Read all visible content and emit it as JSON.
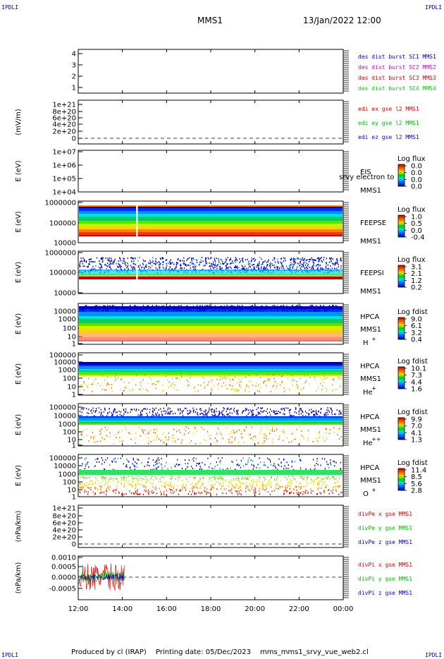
{
  "header": {
    "corner_label": "IPDLI",
    "spacecraft": "MMS1",
    "date_time": "13/Jan/2022 12:00"
  },
  "footer": {
    "producer": "Produced by cl (IRAP)",
    "printing_date": "Printing date: 05/Dec/2023",
    "script": "mms_mms1_srvy_vue_web2.cl"
  },
  "colors": {
    "mms1": "#0000cc",
    "mms2": "#cc00cc",
    "mms3": "#cc0000",
    "mms4": "#00cc00",
    "x_comp": "#dd0000",
    "y_comp": "#00bb00",
    "z_comp": "#0000cc"
  },
  "chart_data": [
    {
      "type": "line",
      "id": "p1",
      "ylabel": "",
      "yticks": [
        "4",
        "3",
        "2",
        "1"
      ],
      "ylim": [
        0.5,
        4.5
      ],
      "legend": [
        {
          "text": "des dist burst SC1 MMS1",
          "color": "#0000cc"
        },
        {
          "text": "des dist burst SC2 MMS2",
          "color": "#cc00cc"
        },
        {
          "text": "des dist burst SC3 MMS3",
          "color": "#cc0000"
        },
        {
          "text": "des dist burst SC4 MMS4",
          "color": "#00cc00"
        }
      ]
    },
    {
      "type": "line",
      "id": "p2",
      "ylabel": "(mV/m)",
      "yticks": [
        "1e+21",
        "8e+20",
        "6e+20",
        "4e+20",
        "2e+20",
        "0"
      ],
      "ylim": [
        -2e+19,
        1.06e+21
      ],
      "zero_line": true,
      "legend": [
        {
          "text": "edi ex gse l2 MMS1",
          "color": "#dd0000"
        },
        {
          "text": "edi ey gse l2 MMS1",
          "color": "#00bb00"
        },
        {
          "text": "edi ez gse l2 MMS1",
          "color": "#0000cc"
        }
      ]
    },
    {
      "type": "heatmap",
      "id": "p3",
      "ylabel": "E (eV)",
      "scale": "log",
      "yticks": [
        "1e+07",
        "1e+06",
        "1e+05",
        "1e+04"
      ],
      "instrument": [
        "EIS",
        "MMS1"
      ],
      "overlay": "srvy electron to",
      "colorbar": {
        "title": "Log flux",
        "ticks": [
          "0.0",
          "0.0",
          "0.0",
          "0.0"
        ]
      }
    },
    {
      "type": "heatmap",
      "id": "p4",
      "ylabel": "E (eV)",
      "scale": "log",
      "yticks": [
        "1000000",
        "100000",
        "10000"
      ],
      "y_range": [
        10000,
        1000000
      ],
      "instrument": [
        "FEEPSE",
        "MMS1"
      ],
      "data_gap_hour": 14.65,
      "colorbar": {
        "title": "Log flux",
        "ticks": [
          "1.0",
          "0.5",
          "0.0",
          "-0.4"
        ]
      }
    },
    {
      "type": "heatmap",
      "id": "p5",
      "ylabel": "E (eV)",
      "scale": "log",
      "yticks": [
        "1000000",
        "100000",
        "10000"
      ],
      "y_range": [
        10000,
        1000000
      ],
      "instrument": [
        "FEEPSI",
        "MMS1"
      ],
      "data_gap_hour": 14.65,
      "colorbar": {
        "title": "Log flux",
        "ticks": [
          "3.1",
          "2.1",
          "1.2",
          "0.2"
        ]
      }
    },
    {
      "type": "heatmap",
      "id": "p6",
      "ylabel": "E (eV)",
      "scale": "log",
      "yticks": [
        "10000",
        "1000",
        "100",
        "10",
        "1"
      ],
      "y_range": [
        1,
        30000
      ],
      "instrument": [
        "HPCA",
        "MMS1"
      ],
      "species": "H",
      "charge": "+",
      "colorbar": {
        "title": "Log fdist",
        "ticks": [
          "9.0",
          "6.1",
          "3.2",
          "0.4"
        ]
      }
    },
    {
      "type": "heatmap",
      "id": "p7",
      "ylabel": "E (eV)",
      "scale": "log",
      "yticks": [
        "100000",
        "10000",
        "1000",
        "100",
        "10",
        "1"
      ],
      "y_range": [
        1,
        100000
      ],
      "instrument": [
        "HPCA",
        "MMS1"
      ],
      "species": "He",
      "charge": "+",
      "colorbar": {
        "title": "Log fdist",
        "ticks": [
          "10.1",
          "7.3",
          "4.4",
          "1.6"
        ]
      }
    },
    {
      "type": "heatmap",
      "id": "p8",
      "ylabel": "E (eV)",
      "scale": "log",
      "yticks": [
        "100000",
        "10000",
        "1000",
        "100",
        "10",
        "1"
      ],
      "y_range": [
        1,
        100000
      ],
      "instrument": [
        "HPCA",
        "MMS1"
      ],
      "species": "He",
      "charge": "++",
      "colorbar": {
        "title": "Log fdist",
        "ticks": [
          "9.9",
          "7.0",
          "4.1",
          "1.3"
        ]
      }
    },
    {
      "type": "heatmap",
      "id": "p9",
      "ylabel": "E (eV)",
      "scale": "log",
      "yticks": [
        "100000",
        "10000",
        "1000",
        "100",
        "10",
        "1"
      ],
      "y_range": [
        1,
        100000
      ],
      "instrument": [
        "HPCA",
        "MMS1"
      ],
      "species": "O",
      "charge": "+",
      "colorbar": {
        "title": "Log fdist",
        "ticks": [
          "11.4",
          "8.5",
          "5.6",
          "2.8"
        ]
      }
    },
    {
      "type": "line",
      "id": "p10",
      "ylabel": "(nPa/km)",
      "yticks": [
        "1e+21",
        "8e+20",
        "6e+20",
        "4e+20",
        "2e+20",
        "0"
      ],
      "ylim": [
        -2e+19,
        1.06e+21
      ],
      "zero_line": true,
      "legend": [
        {
          "text": "divPe x gse MMS1",
          "color": "#dd0000"
        },
        {
          "text": "divPe y gse MMS1",
          "color": "#00bb00"
        },
        {
          "text": "divPe z gse MMS1",
          "color": "#0000cc"
        }
      ]
    },
    {
      "type": "line",
      "id": "p11",
      "ylabel": "(nPa/km)",
      "yticks": [
        "0.0010",
        "0.0005",
        "0.0000",
        "-0.0005"
      ],
      "ytick_values": [
        0.001,
        0.0005,
        0,
        -0.0005
      ],
      "ylim": [
        -0.00085,
        0.00105
      ],
      "zero_line": true,
      "data_end_hour": 14.1,
      "legend": [
        {
          "text": "divPi x gse MMS1",
          "color": "#dd0000"
        },
        {
          "text": "divPi y gse MMS1",
          "color": "#00bb00"
        },
        {
          "text": "divPi z gse MMS1",
          "color": "#0000cc"
        }
      ]
    }
  ],
  "x_axis": {
    "ticks": [
      "12:00",
      "14:00",
      "16:00",
      "18:00",
      "20:00",
      "22:00",
      "00:00"
    ],
    "hours": [
      12,
      14,
      16,
      18,
      20,
      22,
      24
    ]
  }
}
